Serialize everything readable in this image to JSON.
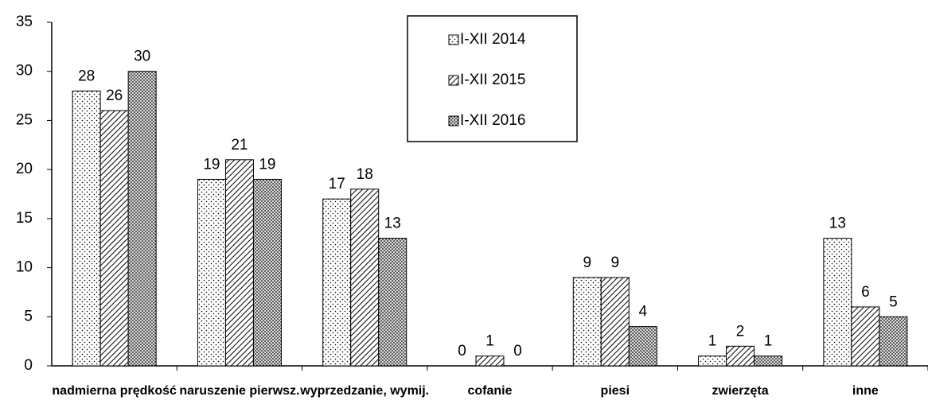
{
  "chart_data": {
    "type": "bar",
    "categories": [
      "nadmierna prędkość",
      "naruszenie pierwsz.",
      "wyprzedzanie, wymij.",
      "cofanie",
      "piesi",
      "zwierzęta",
      "inne"
    ],
    "series": [
      {
        "name": "I-XII 2014",
        "color": "#ffffff",
        "pattern": "dots",
        "values": [
          28,
          19,
          17,
          0,
          9,
          1,
          13
        ]
      },
      {
        "name": "I-XII 2015",
        "color": "#ffffff",
        "pattern": "hatch",
        "values": [
          26,
          21,
          18,
          1,
          9,
          2,
          6
        ]
      },
      {
        "name": "I-XII 2016",
        "color": "#ffffff",
        "pattern": "dense-dots",
        "values": [
          30,
          19,
          13,
          0,
          4,
          1,
          5
        ]
      }
    ],
    "ylim": [
      0,
      35
    ],
    "yticks": [
      0,
      5,
      10,
      15,
      20,
      25,
      30,
      35
    ],
    "grid": false
  }
}
